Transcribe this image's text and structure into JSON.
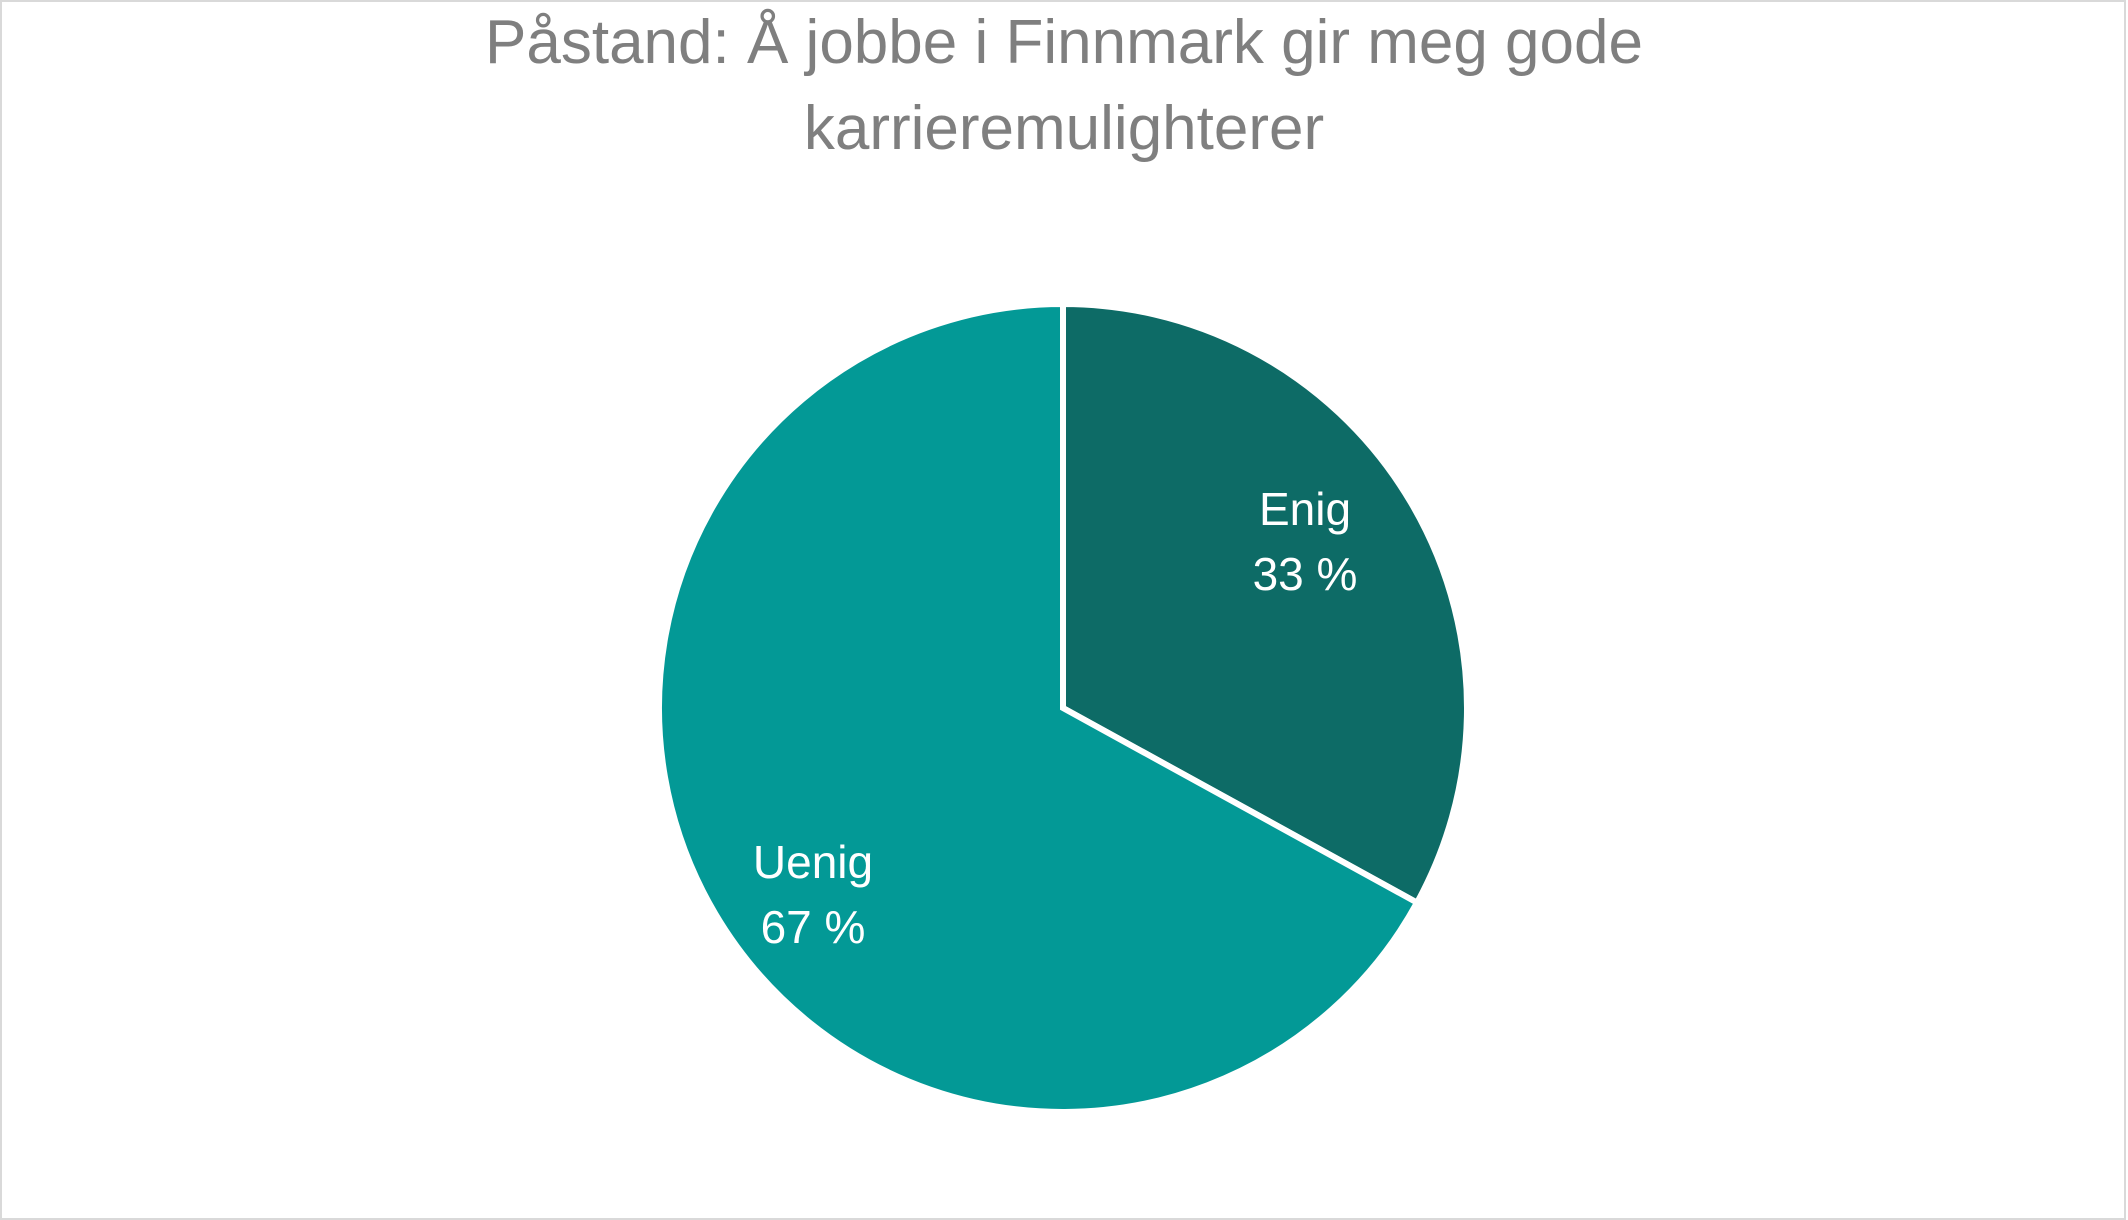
{
  "chart_data": {
    "type": "pie",
    "title_lines": [
      "Påstand: Å jobbe i Finnmark gir meg gode",
      "karrieremulighterer"
    ],
    "slices": [
      {
        "label": "Enig",
        "value": 33,
        "display": "33 %",
        "color": "#0d6b66"
      },
      {
        "label": "Uenig",
        "value": 67,
        "display": "67 %",
        "color": "#039996"
      }
    ],
    "start_angle": "top",
    "direction": "clockwise",
    "slice_border_color": "#ffffff",
    "legend": "none",
    "data_labels": "inside"
  }
}
